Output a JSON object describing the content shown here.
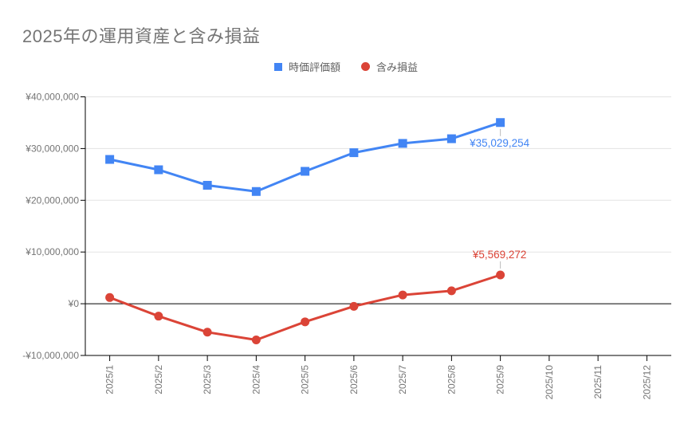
{
  "title": "2025年の運用資産と含み損益",
  "legend": {
    "items": [
      {
        "label": "時価評価額",
        "marker": "square",
        "color": "#4285f4"
      },
      {
        "label": "含み損益",
        "marker": "circle",
        "color": "#db4437"
      }
    ]
  },
  "colors": {
    "title_text": "#757575",
    "legend_text": "#616161",
    "axis_line": "#000000",
    "gridline": "#e3e3e3",
    "tick_label": "#757575",
    "series_blue": "#4285f4",
    "series_red": "#db4437"
  },
  "chart_data": {
    "type": "line",
    "title": "2025年の運用資産と含み損益",
    "x_categories": [
      "2025/1",
      "2025/2",
      "2025/3",
      "2025/4",
      "2025/5",
      "2025/6",
      "2025/7",
      "2025/8",
      "2025/9",
      "2025/10",
      "2025/11",
      "2025/12"
    ],
    "series": [
      {
        "name": "時価評価額",
        "color": "#4285f4",
        "point_shape": "square",
        "values": [
          27900000,
          25900000,
          22900000,
          21700000,
          25600000,
          29200000,
          31000000,
          31900000,
          35029254,
          null,
          null,
          null
        ]
      },
      {
        "name": "含み損益",
        "color": "#db4437",
        "point_shape": "circle",
        "values": [
          1200000,
          -2400000,
          -5500000,
          -7000000,
          -3500000,
          -500000,
          1700000,
          2500000,
          5569272,
          null,
          null,
          null
        ]
      }
    ],
    "annotations": [
      {
        "series": 0,
        "index": 8,
        "text": "¥35,029,254",
        "placement": "below",
        "color": "#4285f4"
      },
      {
        "series": 1,
        "index": 8,
        "text": "¥5,569,272",
        "placement": "above",
        "color": "#db4437"
      }
    ],
    "y_axis": {
      "min": -10000000,
      "max": 40000000,
      "tick_values": [
        40000000,
        30000000,
        20000000,
        10000000,
        0,
        -10000000
      ],
      "tick_labels": [
        "¥40,000,000",
        "¥30,000,000",
        "¥20,000,000",
        "¥10,000,000",
        "¥0",
        "-¥10,000,000"
      ]
    },
    "grid": true,
    "zero_line": true,
    "legend_position": "top",
    "x_label_rotation": -90
  }
}
